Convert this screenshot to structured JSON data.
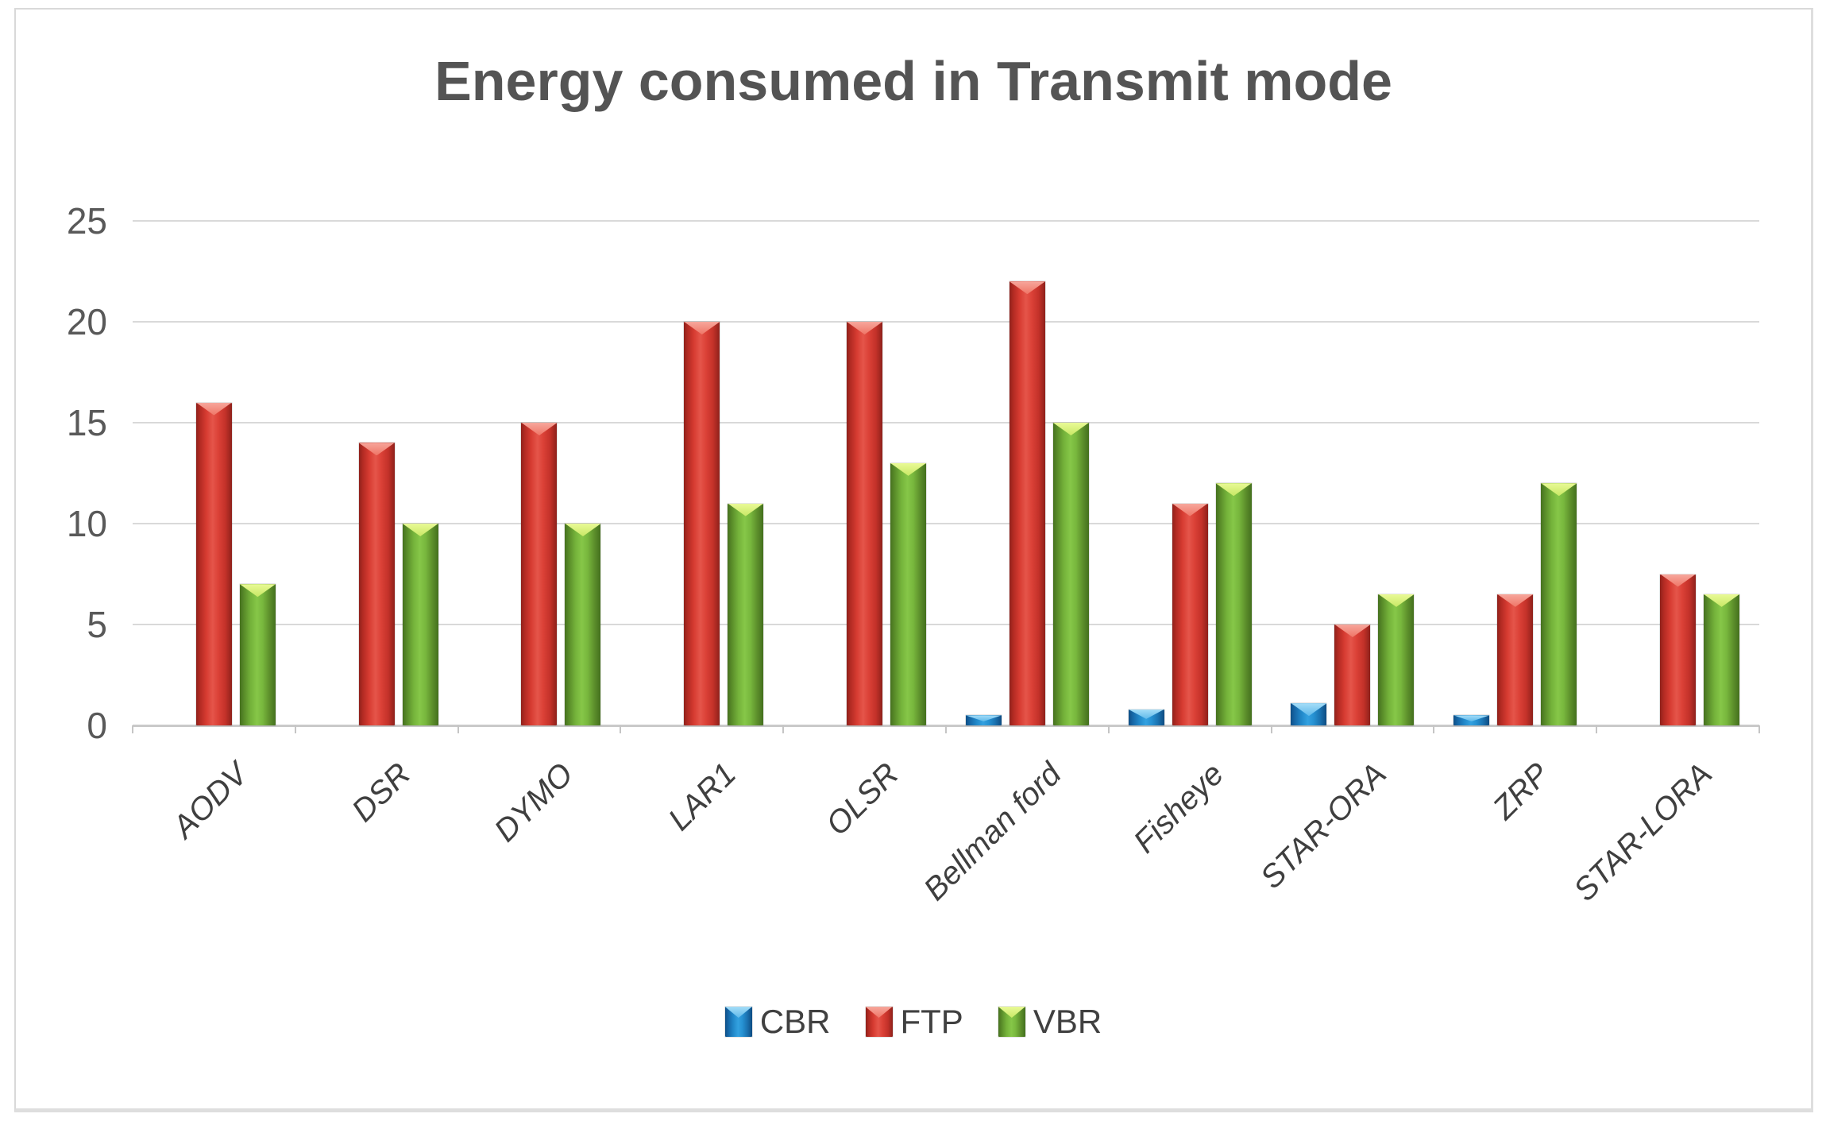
{
  "title": "Energy consumed in Transmit mode",
  "chart_data": {
    "type": "bar",
    "title": "Energy consumed in Transmit mode",
    "categories": [
      "AODV",
      "DSR",
      "DYMO",
      "LAR1",
      "OLSR",
      "Bellman ford",
      "Fisheye",
      "STAR-ORA",
      "ZRP",
      "STAR-LORA"
    ],
    "series": [
      {
        "name": "CBR",
        "color": "#1e87c9",
        "values": [
          0,
          0,
          0,
          0,
          0,
          0.5,
          0.8,
          1.1,
          0.5,
          0
        ]
      },
      {
        "name": "FTP",
        "color": "#d23b31",
        "values": [
          16,
          14,
          15,
          20,
          20,
          22,
          11,
          5,
          6.5,
          7.5
        ]
      },
      {
        "name": "VBR",
        "color": "#7cbb40",
        "values": [
          7,
          10,
          10,
          11,
          13,
          15,
          12,
          6.5,
          12,
          6.5
        ]
      }
    ],
    "xlabel": "",
    "ylabel": "",
    "ylim": [
      0,
      25
    ],
    "yticks": [
      0,
      5,
      10,
      15,
      20,
      25
    ],
    "grid": true,
    "legend_position": "bottom"
  }
}
